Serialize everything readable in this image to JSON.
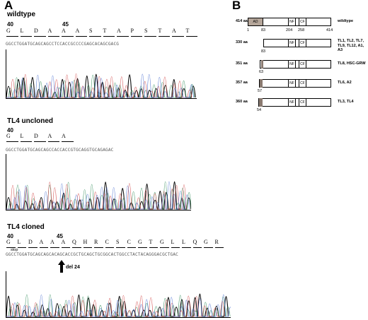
{
  "panelA": {
    "letter": "A",
    "wildtype": {
      "label": "wildtype",
      "pos1": "40",
      "pos2": "45",
      "aa": [
        "G",
        "L",
        "D",
        "A",
        "A",
        "A",
        "S",
        "T",
        "A",
        "P",
        "S",
        "T",
        "A",
        "T"
      ],
      "seq": "GGCCTGGATGCAGCAGCCTCCACCGCCCCGAGCACAGCGACG"
    },
    "uncloned": {
      "label": "TL4 uncloned",
      "pos1": "40",
      "aa": [
        "G",
        "L",
        "D",
        "A",
        "A"
      ],
      "seq": "GGCCTGGATGCAGCAGCCACCACCGTGCAGGTGCAGAGAC"
    },
    "cloned": {
      "label": "TL4 cloned",
      "pos1": "40",
      "pos2": "45",
      "aa": [
        "G",
        "L",
        "D",
        "A",
        "A",
        "A",
        "Q",
        "H",
        "R",
        "C",
        "S",
        "C",
        "G",
        "T",
        "G",
        "L",
        "L",
        "Q",
        "G",
        "R"
      ],
      "seq": "GGCCTGGATGCAGCAGCACAGCACCGCTGCAGCTGCGGCACTGGCCTACTACAGGGACGCTGAC",
      "stop_label": "stop",
      "del_label": "del 24"
    }
  },
  "panelB": {
    "letter": "B",
    "rows": [
      {
        "aa": "414 aa",
        "desc": "wildtype",
        "ad": "AD",
        "nf": "NF",
        "cf": "CF"
      },
      {
        "aa": "330 aa",
        "desc": "TL1, TL2, TL7, TL9, TL12, A1, A3",
        "nf": "NF",
        "cf": "CF"
      },
      {
        "aa": "351 aa",
        "desc": "TL8, HSC-GRW",
        "nf": "NF",
        "cf": "CF"
      },
      {
        "aa": "357 aa",
        "desc": "TL6, A2",
        "nf": "NF",
        "cf": "CF"
      },
      {
        "aa": "360 aa",
        "desc": "TL3, TL4",
        "nf": "NF",
        "cf": "CF"
      }
    ],
    "ticks": [
      "1",
      "83",
      "204",
      "258",
      "414"
    ],
    "start_labels": [
      "83",
      "63",
      "57",
      "54"
    ]
  }
}
